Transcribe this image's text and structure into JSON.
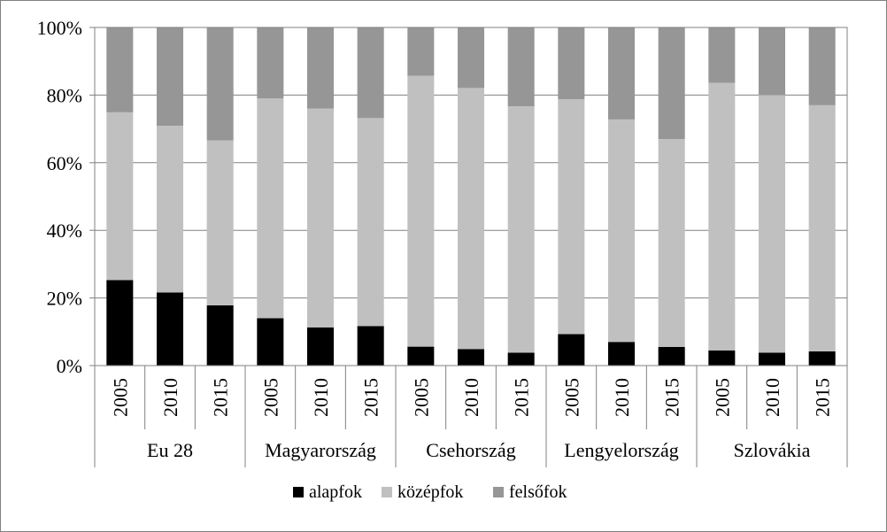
{
  "chart_data": {
    "type": "bar",
    "stacked": "percent",
    "groups": [
      {
        "name": "Eu 28",
        "years": [
          "2005",
          "2010",
          "2015"
        ]
      },
      {
        "name": "Magyarország",
        "years": [
          "2005",
          "2010",
          "2015"
        ]
      },
      {
        "name": "Csehország",
        "years": [
          "2005",
          "2010",
          "2015"
        ]
      },
      {
        "name": "Lengyelország",
        "years": [
          "2005",
          "2010",
          "2015"
        ]
      },
      {
        "name": "Szlovákia",
        "years": [
          "2005",
          "2010",
          "2015"
        ]
      }
    ],
    "series": [
      {
        "name": "alapfok",
        "color": "#000000",
        "values": [
          25.3,
          21.6,
          17.8,
          14.0,
          11.3,
          11.7,
          5.6,
          4.9,
          3.8,
          9.3,
          7.0,
          5.5,
          4.5,
          3.8,
          4.2
        ]
      },
      {
        "name": "középfok",
        "color": "#c0c0c0",
        "values": [
          49.6,
          49.3,
          48.8,
          65.0,
          64.7,
          61.5,
          80.1,
          77.2,
          72.9,
          69.5,
          65.8,
          61.5,
          79.1,
          76.2,
          72.8
        ]
      },
      {
        "name": "felsőfok",
        "color": "#969696",
        "values": [
          25.1,
          29.1,
          33.4,
          21.0,
          24.0,
          26.8,
          14.3,
          17.9,
          23.3,
          21.2,
          27.2,
          33.0,
          16.4,
          20.0,
          23.0
        ]
      }
    ],
    "yticks": [
      "0%",
      "20%",
      "40%",
      "60%",
      "80%",
      "100%"
    ],
    "ylim": [
      0,
      100
    ],
    "grid": true,
    "legend": "bottom"
  }
}
